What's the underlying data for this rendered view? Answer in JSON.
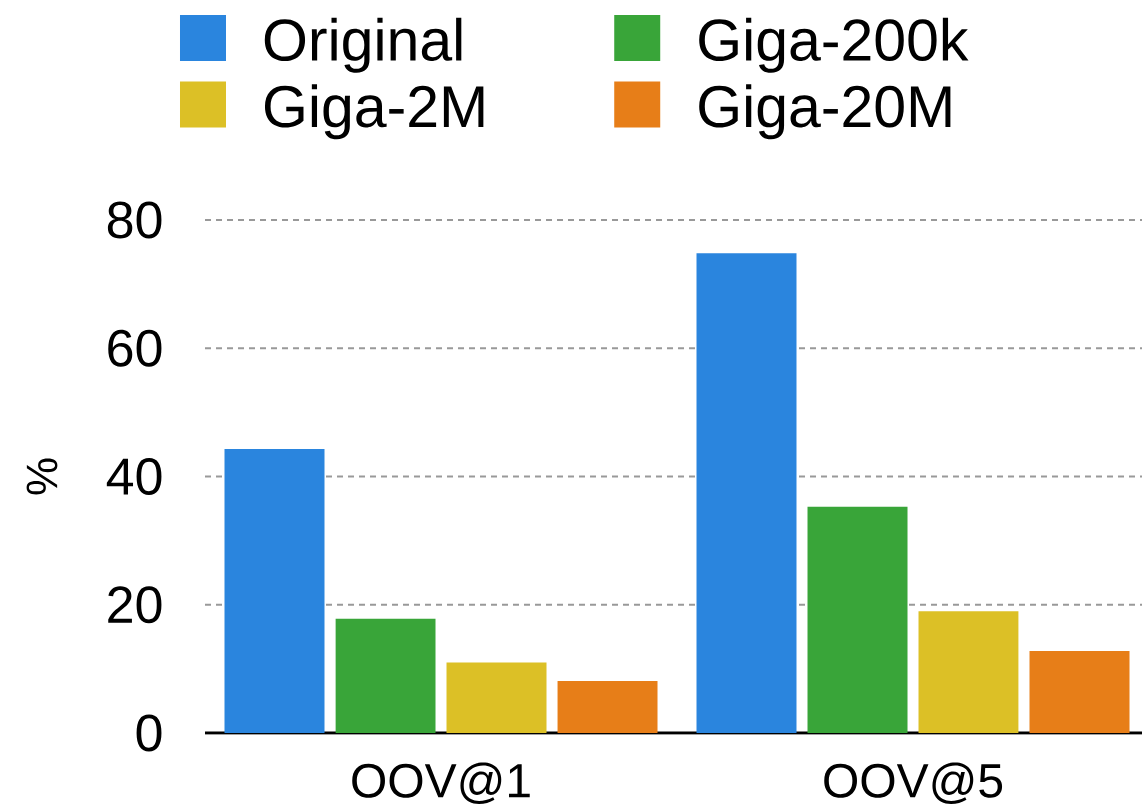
{
  "chart_data": {
    "type": "bar",
    "ylabel": "%",
    "categories": [
      "OOV@1",
      "OOV@5"
    ],
    "series": [
      {
        "name": "Original",
        "color": "#2a85de",
        "values": [
          44.3,
          74.8
        ]
      },
      {
        "name": "Giga-200k",
        "color": "#39a539",
        "values": [
          17.8,
          35.3
        ]
      },
      {
        "name": "Giga-2M",
        "color": "#dcc026",
        "values": [
          11.0,
          19.0
        ]
      },
      {
        "name": "Giga-20M",
        "color": "#e77e18",
        "values": [
          8.1,
          12.8
        ]
      }
    ],
    "ylim": [
      0,
      80
    ],
    "yticks": [
      0,
      20,
      40,
      60,
      80
    ],
    "grid": "y",
    "legend": "top"
  }
}
